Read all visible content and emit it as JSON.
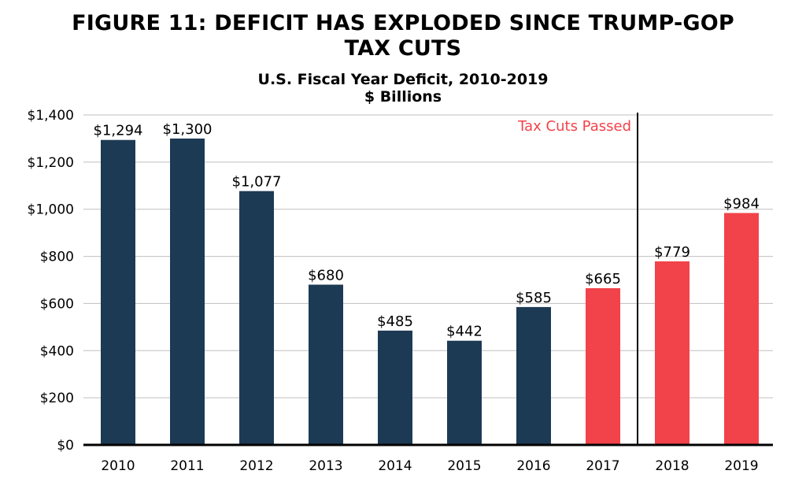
{
  "chart_data": {
    "type": "bar",
    "title": "FIGURE 11: DEFICIT HAS EXPLODED SINCE TRUMP-GOP TAX CUTS",
    "title_lines": [
      "FIGURE 11: DEFICIT HAS EXPLODED SINCE TRUMP-GOP",
      "TAX CUTS"
    ],
    "subtitle_lines": [
      "U.S. Fiscal Year Deficit, 2010-2019",
      "$ Billions"
    ],
    "categories": [
      "2010",
      "2011",
      "2012",
      "2013",
      "2014",
      "2015",
      "2016",
      "2017",
      "2018",
      "2019"
    ],
    "values": [
      1294,
      1300,
      1077,
      680,
      485,
      442,
      585,
      665,
      779,
      984
    ],
    "value_labels": [
      "$1,294",
      "$1,300",
      "$1,077",
      "$680",
      "$485",
      "$442",
      "$585",
      "$665",
      "$779",
      "$984"
    ],
    "bar_colors": [
      "#1d3a54",
      "#1d3a54",
      "#1d3a54",
      "#1d3a54",
      "#1d3a54",
      "#1d3a54",
      "#1d3a54",
      "#f2434a",
      "#f2434a",
      "#f2434a"
    ],
    "ylim": [
      0,
      1400
    ],
    "yticks": [
      0,
      200,
      400,
      600,
      800,
      1000,
      1200,
      1400
    ],
    "ytick_labels": [
      "$0",
      "$200",
      "$400",
      "$600",
      "$800",
      "$1,000",
      "$1,200",
      "$1,400"
    ],
    "grid": true,
    "annotation": {
      "text": "Tax Cuts Passed",
      "color": "#f2434a",
      "divider_after_category": "2017"
    },
    "xlabel": "",
    "ylabel": ""
  }
}
